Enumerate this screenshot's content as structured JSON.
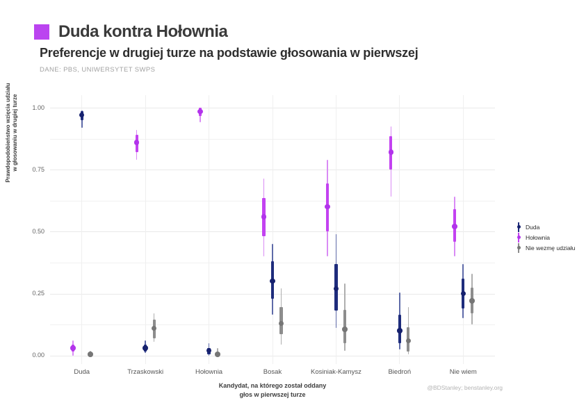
{
  "theme": {
    "accent": "#bb44f0",
    "grid_major": "#e9e9e9",
    "grid_minor": "#f1f1f1",
    "background": "#ffffff"
  },
  "chart_data": {
    "type": "pointrange",
    "title": "Duda kontra Hołownia",
    "subtitle": "Preferencje w drugiej turze na podstawie głosowania w pierwszej",
    "source": "DANE: PBS, UNIWERSYTET SWPS",
    "caption": "@BDStanley; benstanley.org",
    "xlabel": [
      "Kandydat, na którego został oddany",
      "głos w pierwszej turze"
    ],
    "ylabel": [
      "Prawdopodobieństwo wzięcia udziału",
      "w głosowaniu w drugiej turze"
    ],
    "categories": [
      "Duda",
      "Trzaskowski",
      "Hołownia",
      "Bosak",
      "Kosiniak-Kamysz",
      "Biedroń",
      "Nie wiem"
    ],
    "ylim": [
      0,
      1
    ],
    "grid": "major+minor horizontal, vertical per category",
    "legend_position": "right",
    "y_ticks": [
      {
        "value": 0.0,
        "label": "0.00"
      },
      {
        "value": 0.25,
        "label": "0.25"
      },
      {
        "value": 0.5,
        "label": "0.50"
      },
      {
        "value": 0.75,
        "label": "0.75"
      },
      {
        "value": 1.0,
        "label": "1.00"
      }
    ],
    "grid_values": {
      "major": [
        0,
        0.25,
        0.5,
        0.75,
        1.0
      ],
      "minor": [
        0.125,
        0.375,
        0.625,
        0.875
      ]
    },
    "series": [
      {
        "name": "Duda",
        "dodge_offset": 0,
        "colors": {
          "dot": "#16216e",
          "thick": "#1e2c7c",
          "thin": "#5e6aa8"
        },
        "points": [
          {
            "p": 0.97,
            "thick": [
              0.95,
              0.985
            ],
            "thin": [
              0.92,
              0.99
            ]
          },
          {
            "p": 0.03,
            "thick": [
              0.015,
              0.045
            ],
            "thin": [
              0.01,
              0.06
            ]
          },
          {
            "p": 0.02,
            "thick": [
              0.005,
              0.03
            ],
            "thin": [
              0.0,
              0.05
            ]
          },
          {
            "p": 0.3,
            "thick": [
              0.23,
              0.38
            ],
            "thin": [
              0.165,
              0.45
            ]
          },
          {
            "p": 0.27,
            "thick": [
              0.18,
              0.37
            ],
            "thin": [
              0.11,
              0.49
            ]
          },
          {
            "p": 0.1,
            "thick": [
              0.05,
              0.165
            ],
            "thin": [
              0.025,
              0.255
            ]
          },
          {
            "p": 0.25,
            "thick": [
              0.19,
              0.31
            ],
            "thin": [
              0.15,
              0.37
            ]
          }
        ]
      },
      {
        "name": "Hołownia",
        "dodge_offset": -12.5,
        "colors": {
          "dot": "#b234eb",
          "thick": "#c342f1",
          "thin": "#d98bf5"
        },
        "points": [
          {
            "p": 0.03,
            "thick": [
              0.015,
              0.045
            ],
            "thin": [
              0.0,
              0.06
            ]
          },
          {
            "p": 0.86,
            "thick": [
              0.82,
              0.89
            ],
            "thin": [
              0.79,
              0.91
            ]
          },
          {
            "p": 0.985,
            "thick": [
              0.965,
              1.0
            ],
            "thin": [
              0.94,
              1.0
            ]
          },
          {
            "p": 0.56,
            "thick": [
              0.48,
              0.635
            ],
            "thin": [
              0.4,
              0.715
            ]
          },
          {
            "p": 0.6,
            "thick": [
              0.5,
              0.695
            ],
            "thin": [
              0.4,
              0.79
            ]
          },
          {
            "p": 0.82,
            "thick": [
              0.75,
              0.885
            ],
            "thin": [
              0.64,
              0.925
            ]
          },
          {
            "p": 0.52,
            "thick": [
              0.46,
              0.59
            ],
            "thin": [
              0.4,
              0.64
            ]
          }
        ]
      },
      {
        "name": "Nie wezmę udziału",
        "dodge_offset": 12.5,
        "colors": {
          "dot": "#767676",
          "thick": "#8d8d8d",
          "thin": "#aeaeae"
        },
        "points": [
          {
            "p": 0.005,
            "thick": [
              0.0,
              0.01
            ],
            "thin": [
              0.0,
              0.02
            ]
          },
          {
            "p": 0.11,
            "thick": [
              0.07,
              0.145
            ],
            "thin": [
              0.055,
              0.17
            ]
          },
          {
            "p": 0.005,
            "thick": [
              0.0,
              0.01
            ],
            "thin": [
              0.0,
              0.03
            ]
          },
          {
            "p": 0.13,
            "thick": [
              0.085,
              0.195
            ],
            "thin": [
              0.045,
              0.27
            ]
          },
          {
            "p": 0.105,
            "thick": [
              0.05,
              0.185
            ],
            "thin": [
              0.02,
              0.29
            ]
          },
          {
            "p": 0.06,
            "thick": [
              0.015,
              0.115
            ],
            "thin": [
              0.005,
              0.195
            ]
          },
          {
            "p": 0.22,
            "thick": [
              0.17,
              0.275
            ],
            "thin": [
              0.125,
              0.33
            ]
          }
        ]
      }
    ]
  }
}
